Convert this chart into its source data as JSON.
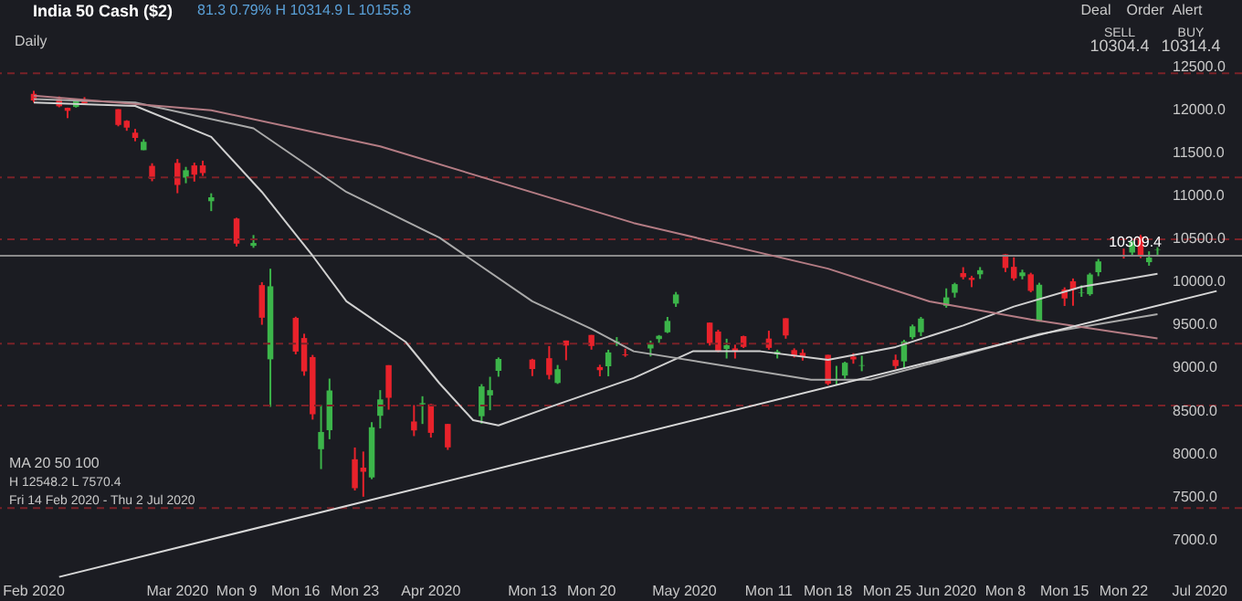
{
  "chart_data": {
    "type": "candlestick",
    "title": "India 50 Cash ($2)",
    "subtitle": "81.3 0.79% H 10314.9 L 10155.8",
    "annotations": [
      "Daily",
      "Deal",
      "Order",
      "Alert",
      "SELL",
      "10304.4",
      "BUY",
      "10314.4",
      "MA 20 50 100",
      "H 12548.2 L 7570.4",
      "Fri 14 Feb 2020 - Thu 2 Jul 2020"
    ],
    "x": [
      "2020-02-14",
      "2020-02-17",
      "2020-02-18",
      "2020-02-19",
      "2020-02-20",
      "2020-02-24",
      "2020-02-25",
      "2020-02-26",
      "2020-02-27",
      "2020-02-28",
      "2020-03-02",
      "2020-03-03",
      "2020-03-04",
      "2020-03-05",
      "2020-03-06",
      "2020-03-09",
      "2020-03-11",
      "2020-03-12",
      "2020-03-13",
      "2020-03-16",
      "2020-03-17",
      "2020-03-18",
      "2020-03-19",
      "2020-03-20",
      "2020-03-23",
      "2020-03-24",
      "2020-03-25",
      "2020-03-26",
      "2020-03-27",
      "2020-03-30",
      "2020-03-31",
      "2020-04-01",
      "2020-04-03",
      "2020-04-07",
      "2020-04-08",
      "2020-04-09",
      "2020-04-13",
      "2020-04-15",
      "2020-04-16",
      "2020-04-17",
      "2020-04-20",
      "2020-04-21",
      "2020-04-22",
      "2020-04-23",
      "2020-04-24",
      "2020-04-27",
      "2020-04-28",
      "2020-04-29",
      "2020-04-30",
      "2020-05-04",
      "2020-05-05",
      "2020-05-06",
      "2020-05-07",
      "2020-05-08",
      "2020-05-11",
      "2020-05-12",
      "2020-05-13",
      "2020-05-14",
      "2020-05-15",
      "2020-05-18",
      "2020-05-19",
      "2020-05-20",
      "2020-05-21",
      "2020-05-22",
      "2020-05-26",
      "2020-05-27",
      "2020-05-28",
      "2020-05-29",
      "2020-06-01",
      "2020-06-02",
      "2020-06-03",
      "2020-06-04",
      "2020-06-05",
      "2020-06-08",
      "2020-06-09",
      "2020-06-10",
      "2020-06-11",
      "2020-06-12",
      "2020-06-15",
      "2020-06-16",
      "2020-06-17",
      "2020-06-18",
      "2020-06-19",
      "2020-06-22",
      "2020-06-23",
      "2020-06-24",
      "2020-06-25",
      "2020-06-26"
    ],
    "ohlc": [
      [
        12190,
        12225,
        12090,
        12113
      ],
      [
        12131,
        12160,
        12034,
        12046
      ],
      [
        12028,
        12030,
        11908,
        11993
      ],
      [
        12038,
        12134,
        12030,
        12126
      ],
      [
        12120,
        12152,
        12071,
        12081
      ],
      [
        12012,
        12012,
        11813,
        11829
      ],
      [
        11877,
        11884,
        11761,
        11798
      ],
      [
        11739,
        11783,
        11639,
        11678
      ],
      [
        11536,
        11663,
        11536,
        11633
      ],
      [
        11354,
        11384,
        11175,
        11202
      ],
      [
        11388,
        11433,
        11036,
        11132
      ],
      [
        11217,
        11342,
        11152,
        11303
      ],
      [
        11359,
        11391,
        11171,
        11251
      ],
      [
        11359,
        11414,
        11237,
        11270
      ],
      [
        10943,
        11035,
        10828,
        10989
      ],
      [
        10742,
        10751,
        10417,
        10451
      ],
      [
        10425,
        10550,
        10402,
        10458
      ],
      [
        9969,
        10003,
        9508,
        9590
      ],
      [
        9107,
        10159,
        8555,
        9955
      ],
      [
        9588,
        9602,
        9165,
        9197
      ],
      [
        9354,
        9404,
        8916,
        8967
      ],
      [
        9133,
        9158,
        8407,
        8469
      ],
      [
        8063,
        8576,
        7832,
        8263
      ],
      [
        8284,
        8883,
        8179,
        8745
      ],
      [
        7946,
        8083,
        7583,
        7610
      ],
      [
        7849,
        8036,
        7511,
        7801
      ],
      [
        7735,
        8377,
        7715,
        8318
      ],
      [
        8451,
        8749,
        8304,
        8641
      ],
      [
        9039,
        9039,
        8522,
        8660
      ],
      [
        8385,
        8576,
        8215,
        8281
      ],
      [
        8584,
        8678,
        8356,
        8598
      ],
      [
        8584,
        8588,
        8198,
        8253
      ],
      [
        8356,
        8356,
        8055,
        8084
      ],
      [
        8446,
        8819,
        8360,
        8792
      ],
      [
        8688,
        8904,
        8516,
        8749
      ],
      [
        8973,
        9129,
        8905,
        9111
      ],
      [
        9104,
        9113,
        8912,
        8994
      ],
      [
        9120,
        9261,
        8874,
        8925
      ],
      [
        8832,
        9041,
        8821,
        8992
      ],
      [
        9325,
        9325,
        9096,
        9267
      ],
      [
        9390,
        9390,
        9219,
        9262
      ],
      [
        9017,
        9044,
        8910,
        8981
      ],
      [
        9026,
        9218,
        8910,
        9187
      ],
      [
        9300,
        9365,
        9261,
        9314
      ],
      [
        9164,
        9230,
        9136,
        9154
      ],
      [
        9233,
        9324,
        9140,
        9282
      ],
      [
        9342,
        9389,
        9298,
        9380
      ],
      [
        9421,
        9599,
        9412,
        9553
      ],
      [
        9754,
        9889,
        9716,
        9860
      ],
      [
        9533,
        9533,
        9267,
        9294
      ],
      [
        9429,
        9450,
        9190,
        9205
      ],
      [
        9227,
        9346,
        9116,
        9270
      ],
      [
        9234,
        9277,
        9116,
        9199
      ],
      [
        9376,
        9382,
        9238,
        9251
      ],
      [
        9348,
        9439,
        9219,
        9240
      ],
      [
        9164,
        9219,
        9117,
        9197
      ],
      [
        9584,
        9584,
        9346,
        9384
      ],
      [
        9214,
        9235,
        9128,
        9142
      ],
      [
        9182,
        9224,
        9092,
        9137
      ],
      [
        9159,
        9159,
        8807,
        8823
      ],
      [
        8879,
        9031,
        8806,
        8880
      ],
      [
        8918,
        9079,
        8883,
        9067
      ],
      [
        9138,
        9178,
        9056,
        9106
      ],
      [
        9032,
        9149,
        8969,
        9039
      ],
      [
        9099,
        9162,
        8996,
        9029
      ],
      [
        9083,
        9334,
        9005,
        9315
      ],
      [
        9364,
        9511,
        9340,
        9490
      ],
      [
        9422,
        9599,
        9376,
        9580
      ],
      [
        9727,
        9931,
        9706,
        9826
      ],
      [
        9880,
        9996,
        9824,
        9980
      ],
      [
        10108,
        10177,
        10035,
        10061
      ],
      [
        10054,
        10077,
        9945,
        10029
      ],
      [
        10094,
        10178,
        10041,
        10142
      ],
      [
        10326,
        10328,
        10120,
        10168
      ],
      [
        10181,
        10291,
        10021,
        10047
      ],
      [
        10073,
        10148,
        10036,
        10116
      ],
      [
        10094,
        10112,
        9885,
        9902
      ],
      [
        9544,
        9996,
        9544,
        9973
      ],
      [
        9919,
        9943,
        9726,
        9814
      ],
      [
        10014,
        10046,
        9729,
        9914
      ],
      [
        9877,
        9967,
        9833,
        9882
      ],
      [
        9863,
        10111,
        9845,
        10092
      ],
      [
        10119,
        10272,
        10072,
        10244
      ],
      [
        10318,
        10393,
        10277,
        10312
      ],
      [
        10347,
        10484,
        10301,
        10471
      ],
      [
        10529,
        10553,
        10282,
        10305
      ],
      [
        10235,
        10361,
        10194,
        10288
      ],
      [
        10378,
        10409,
        10310,
        10383
      ]
    ],
    "colors": [
      "#e8222b",
      "#e8222b",
      "#e8222b",
      "#3cb54a",
      "#e8222b",
      "#e8222b",
      "#e8222b",
      "#e8222b",
      "#3cb54a",
      "#e8222b",
      "#e8222b",
      "#3cb54a",
      "#e8222b",
      "#e8222b",
      "#3cb54a",
      "#e8222b",
      "#3cb54a",
      "#e8222b",
      "#3cb54a",
      "#e8222b",
      "#e8222b",
      "#e8222b",
      "#3cb54a",
      "#3cb54a",
      "#e8222b",
      "#e8222b",
      "#3cb54a",
      "#3cb54a",
      "#e8222b",
      "#e8222b",
      "#3cb54a",
      "#e8222b",
      "#e8222b",
      "#3cb54a",
      "#3cb54a",
      "#3cb54a",
      "#e8222b",
      "#e8222b",
      "#3cb54a",
      "#e8222b",
      "#e8222b",
      "#e8222b",
      "#3cb54a",
      "#3cb54a",
      "#e8222b",
      "#3cb54a",
      "#3cb54a",
      "#3cb54a",
      "#3cb54a",
      "#e8222b",
      "#e8222b",
      "#3cb54a",
      "#e8222b",
      "#e8222b",
      "#e8222b",
      "#3cb54a",
      "#e8222b",
      "#e8222b",
      "#e8222b",
      "#e8222b",
      "#3cb54a",
      "#3cb54a",
      "#e8222b",
      "#3cb54a",
      "#e8222b",
      "#3cb54a",
      "#3cb54a",
      "#3cb54a",
      "#3cb54a",
      "#3cb54a",
      "#e8222b",
      "#e8222b",
      "#3cb54a",
      "#e8222b",
      "#e8222b",
      "#3cb54a",
      "#e8222b",
      "#3cb54a",
      "#e8222b",
      "#e8222b",
      "#3cb54a",
      "#3cb54a",
      "#3cb54a",
      "#e8222b",
      "#3cb54a",
      "#e8222b",
      "#3cb54a",
      "#3cb54a"
    ],
    "series": [
      {
        "type": "line",
        "color": "#d0d0d0",
        "x": [
          "2020-02-14",
          "2020-02-26",
          "2020-03-06",
          "2020-03-12",
          "2020-03-18",
          "2020-03-22",
          "2020-03-29",
          "2020-04-02",
          "2020-04-06",
          "2020-04-09",
          "2020-04-15",
          "2020-04-25",
          "2020-05-02",
          "2020-05-10",
          "2020-05-18",
          "2020-05-26",
          "2020-06-03",
          "2020-06-09",
          "2020-06-17",
          "2020-06-26"
        ],
        "values": [
          12090,
          12050,
          11690,
          11050,
          10310,
          9780,
          9310,
          8830,
          8400,
          8340,
          8550,
          8890,
          9200,
          9200,
          9100,
          9250,
          9500,
          9720,
          9950,
          10100
        ],
        "line_style": "solid"
      },
      {
        "type": "line",
        "color": "#a9a9a9",
        "x": [
          "2020-02-14",
          "2020-02-26",
          "2020-03-11",
          "2020-03-22",
          "2020-04-02",
          "2020-04-13",
          "2020-04-20",
          "2020-04-25",
          "2020-05-16",
          "2020-05-23",
          "2020-05-31",
          "2020-06-12",
          "2020-06-26"
        ],
        "values": [
          12130,
          12090,
          11790,
          11050,
          10520,
          9780,
          9460,
          9200,
          8870,
          8870,
          9080,
          9400,
          9630
        ],
        "line_style": "solid"
      },
      {
        "type": "line",
        "color": "#b47c84",
        "x": [
          "2020-02-14",
          "2020-03-06",
          "2020-03-26",
          "2020-04-25",
          "2020-05-18",
          "2020-05-30",
          "2020-06-11",
          "2020-06-26"
        ],
        "values": [
          12170,
          12000,
          11580,
          10690,
          10160,
          9780,
          9570,
          9350
        ],
        "line_style": "solid"
      },
      {
        "type": "line",
        "color": "#d8d8d8",
        "x": [
          "2020-02-17",
          "2020-07-03"
        ],
        "values": [
          6580,
          9900
        ],
        "line_style": "solid"
      }
    ],
    "ref_lines": [
      {
        "axis": "y",
        "value": 12430,
        "color": "#7a2228",
        "line_style": "dashed"
      },
      {
        "axis": "y",
        "value": 11220,
        "color": "#7a2228",
        "line_style": "dashed"
      },
      {
        "axis": "y",
        "value": 10500,
        "color": "#7a2228",
        "line_style": "dashed"
      },
      {
        "axis": "y",
        "value": 9290,
        "color": "#7a2228",
        "line_style": "dashed"
      },
      {
        "axis": "y",
        "value": 8570,
        "color": "#7a2228",
        "line_style": "dashed"
      },
      {
        "axis": "y",
        "value": 7380,
        "color": "#7a2228",
        "line_style": "dashed"
      },
      {
        "axis": "y",
        "value": 10309.4,
        "label": "10309.4",
        "color": "#8a8a8a",
        "line_style": "solid"
      }
    ],
    "xlim": [
      "2020-02-10",
      "2020-07-06"
    ],
    "xticks": [
      {
        "value": "2020-02-14",
        "label": "Feb 2020"
      },
      {
        "value": "2020-03-02",
        "label": "Mar 2020"
      },
      {
        "value": "2020-03-09",
        "label": "Mon 9"
      },
      {
        "value": "2020-03-16",
        "label": "Mon 16"
      },
      {
        "value": "2020-03-23",
        "label": "Mon 23"
      },
      {
        "value": "2020-04-01",
        "label": "Apr 2020"
      },
      {
        "value": "2020-04-13",
        "label": "Mon 13"
      },
      {
        "value": "2020-04-20",
        "label": "Mon 20"
      },
      {
        "value": "2020-05-01",
        "label": "May 2020"
      },
      {
        "value": "2020-05-11",
        "label": "Mon 11"
      },
      {
        "value": "2020-05-18",
        "label": "Mon 18"
      },
      {
        "value": "2020-05-25",
        "label": "Mon 25"
      },
      {
        "value": "2020-06-01",
        "label": "Jun 2020"
      },
      {
        "value": "2020-06-08",
        "label": "Mon 8"
      },
      {
        "value": "2020-06-15",
        "label": "Mon 15"
      },
      {
        "value": "2020-06-22",
        "label": "Mon 22"
      },
      {
        "value": "2020-07-01",
        "label": "Jul 2020"
      }
    ],
    "ylim": [
      6300,
      13280
    ],
    "yticks": [
      {
        "value": 7000,
        "label": "7000.0"
      },
      {
        "value": 7500,
        "label": "7500.0"
      },
      {
        "value": 8000,
        "label": "8000.0"
      },
      {
        "value": 8500,
        "label": "8500.0"
      },
      {
        "value": 9000,
        "label": "9000.0"
      },
      {
        "value": 9500,
        "label": "9500.0"
      },
      {
        "value": 10000,
        "label": "10000.0"
      },
      {
        "value": 10500,
        "label": "10500.0"
      },
      {
        "value": 11000,
        "label": "11000.0"
      },
      {
        "value": 11500,
        "label": "11500.0"
      },
      {
        "value": 12000,
        "label": "12000.0"
      },
      {
        "value": 12500,
        "label": "12500.0"
      }
    ],
    "grid": false
  }
}
